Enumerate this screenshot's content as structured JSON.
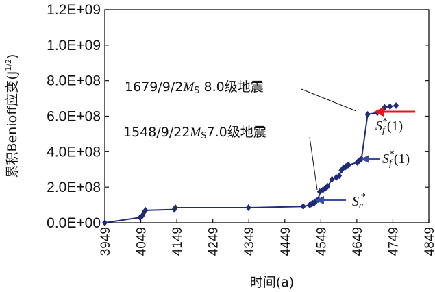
{
  "chart_data": {
    "type": "line",
    "xlabel": "时间(a)",
    "ylabel": "累积Benioff应变(J",
    "ylabel_sup": "1/2",
    "ylabel_close": ")",
    "xlim": [
      3949,
      4849
    ],
    "ylim": [
      0,
      1200000000
    ],
    "x_ticks": [
      "3949",
      "4049",
      "4149",
      "4249",
      "4349",
      "4449",
      "4549",
      "4649",
      "4749",
      "4849"
    ],
    "y_ticks": [
      "0.0E+00",
      "2.0E+08",
      "4.0E+08",
      "6.0E+08",
      "8.0E+08",
      "1.0E+09",
      "1.2E+09"
    ],
    "grid": false,
    "color": "#1f2a78",
    "series": [
      {
        "x": [
          3949,
          4047,
          4053,
          4058,
          4062,
          4142,
          4145,
          4348,
          4500,
          4518,
          4522,
          4527,
          4532,
          4537,
          4542,
          4546,
          4555,
          4562,
          4568,
          4580,
          4592,
          4600,
          4606,
          4612,
          4618,
          4622,
          4626,
          4650,
          4656,
          4662,
          4679,
          4706,
          4726,
          4741,
          4758
        ],
        "y": [
          0,
          30000000,
          40000000,
          60000000,
          70000000,
          75000000,
          85000000,
          85000000,
          92000000,
          100000000,
          105000000,
          110000000,
          115000000,
          125000000,
          130000000,
          175000000,
          185000000,
          195000000,
          205000000,
          245000000,
          255000000,
          265000000,
          295000000,
          310000000,
          315000000,
          322000000,
          325000000,
          340000000,
          350000000,
          360000000,
          610000000,
          620000000,
          650000000,
          655000000,
          660000000
        ]
      }
    ],
    "annotations": [
      {
        "text": "1679/9/2",
        "ms": "M",
        "ms_sub": "S",
        "rest": " 8.0级地震"
      },
      {
        "text": "1548/9/22",
        "ms": "M",
        "ms_sub": "S",
        "rest": "7.0级地震"
      }
    ],
    "markers": [
      {
        "label": "S",
        "sub": "f",
        "sup": "*",
        "suffix": "(1)",
        "arrow_color": "#e8141c"
      },
      {
        "label": "S",
        "sub": "f",
        "sup": "*",
        "suffix": "(1)",
        "arrow_color": "#3a4ba8"
      },
      {
        "label": "S",
        "sub": "c",
        "sup": "*",
        "suffix": "",
        "arrow_color": "#3a4ba8"
      }
    ]
  }
}
